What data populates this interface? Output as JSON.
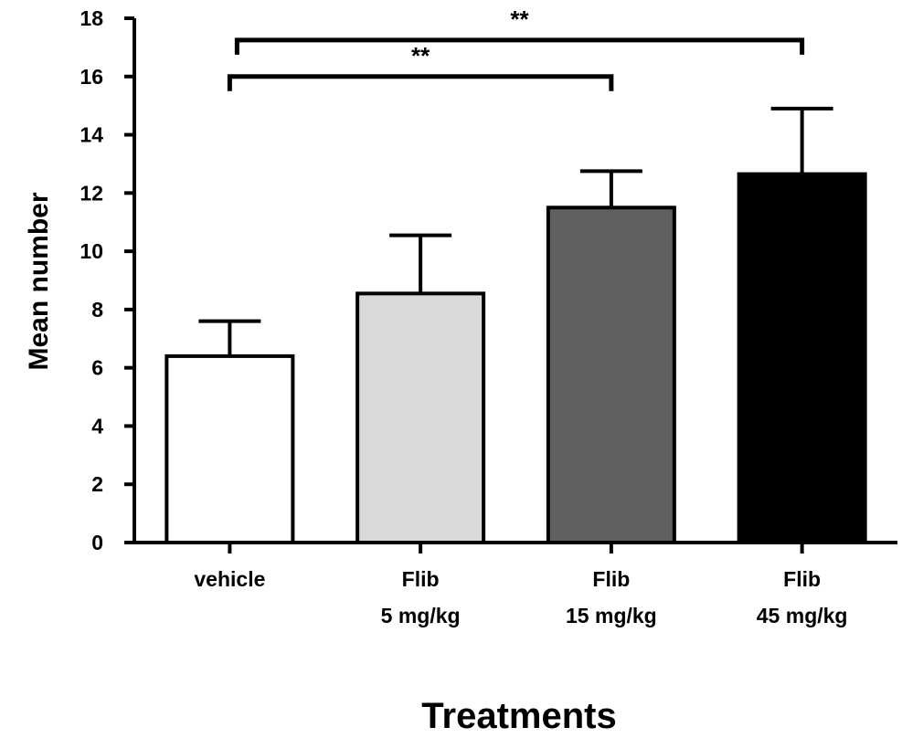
{
  "chart_data": {
    "type": "bar",
    "title": "",
    "xlabel": "Treatments",
    "ylabel": "Mean number",
    "ylim": [
      0,
      18
    ],
    "yticks": [
      0,
      2,
      4,
      6,
      8,
      10,
      12,
      14,
      16,
      18
    ],
    "grid": false,
    "categories": [
      [
        "vehicle"
      ],
      [
        "Flib",
        "5 mg/kg"
      ],
      [
        "Flib",
        "15 mg/kg"
      ],
      [
        "Flib",
        "45 mg/kg"
      ]
    ],
    "values": [
      6.4,
      8.55,
      11.5,
      12.65
    ],
    "error_plus": [
      1.2,
      2.0,
      1.25,
      2.25
    ],
    "bar_colors": [
      "#ffffff",
      "#d9d9d9",
      "#606060",
      "#000000"
    ],
    "significance": [
      {
        "from": 0,
        "to": 2,
        "label": "**",
        "y": 16.0
      },
      {
        "from": 0,
        "to": 3,
        "label": "**",
        "y": 17.25
      }
    ]
  }
}
